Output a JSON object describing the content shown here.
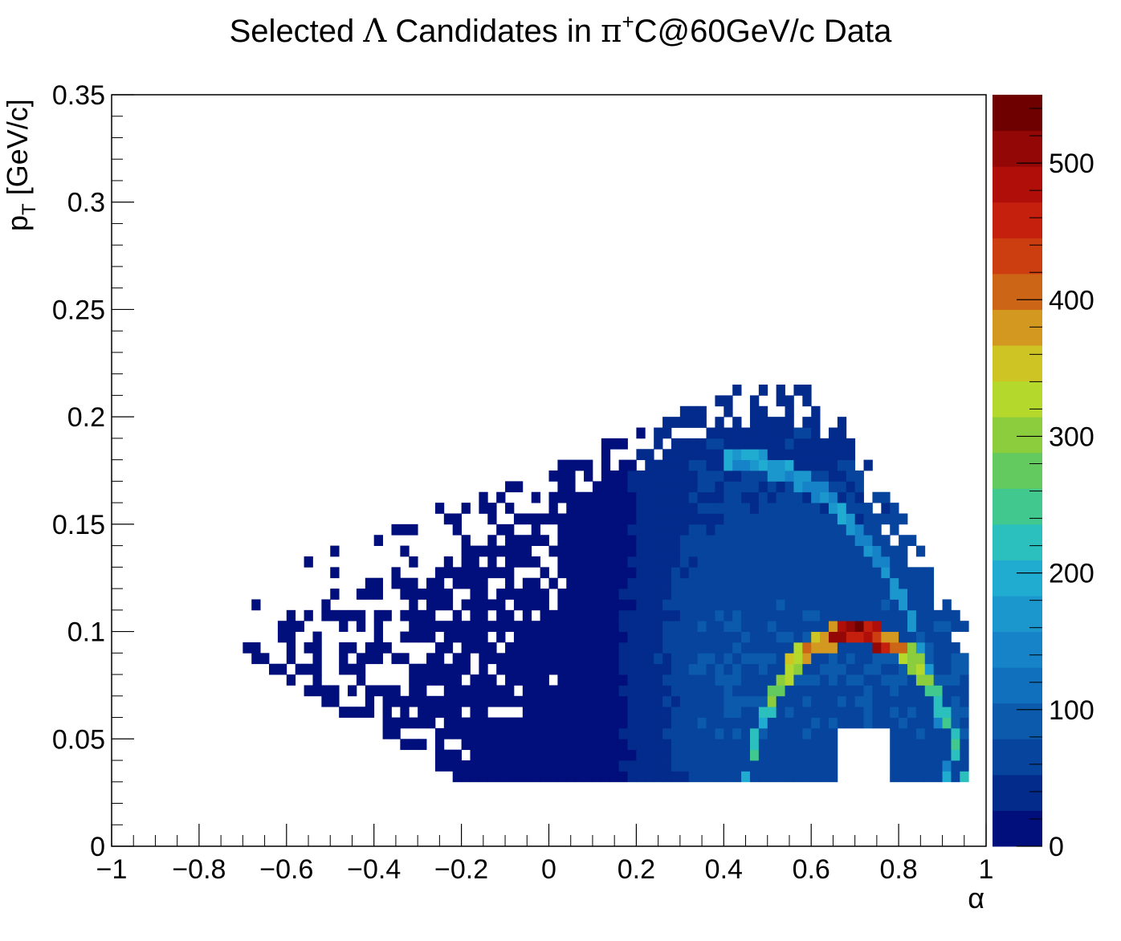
{
  "chart_data": {
    "type": "heatmap",
    "title_parts": {
      "before": "Selected ",
      "lambda": "Λ",
      "middle": " Candidates in ",
      "pi": "π",
      "sup": "+",
      "after": "C@60GeV/c Data"
    },
    "xlabel": "α",
    "ylabel_main": "p",
    "ylabel_sub": "T",
    "ylabel_unit": " [GeV/c]",
    "xlim": [
      -1,
      1
    ],
    "ylim": [
      0,
      0.35
    ],
    "x_ticks": [
      "−1",
      "−0.8",
      "−0.6",
      "−0.4",
      "−0.2",
      "0",
      "0.2",
      "0.4",
      "0.6",
      "0.8",
      "1"
    ],
    "x_tick_values": [
      -1,
      -0.8,
      -0.6,
      -0.4,
      -0.2,
      0,
      0.2,
      0.4,
      0.6,
      0.8,
      1
    ],
    "y_ticks": [
      "0",
      "0.05",
      "0.1",
      "0.15",
      "0.2",
      "0.25",
      "0.3",
      "0.35"
    ],
    "y_tick_values": [
      0,
      0.05,
      0.1,
      0.15,
      0.2,
      0.25,
      0.3,
      0.35
    ],
    "z_range": [
      0,
      550
    ],
    "z_ticks": [
      "0",
      "100",
      "200",
      "300",
      "400",
      "500"
    ],
    "z_tick_values": [
      0,
      100,
      200,
      300,
      400,
      500
    ],
    "bins": {
      "x_bins": 100,
      "y_bins": 70,
      "x_range": [
        -1,
        1
      ],
      "y_range": [
        0,
        0.35
      ]
    },
    "palette": [
      "#000f7b",
      "#032b8c",
      "#06449d",
      "#0b5aac",
      "#1070bd",
      "#1683c8",
      "#1c97ce",
      "#20acd0",
      "#2bbfbd",
      "#40c88f",
      "#62ca5e",
      "#8ccd3e",
      "#b4d82b",
      "#cec524",
      "#d29820",
      "#cc6515",
      "#cc3d0f",
      "#c51f0d",
      "#b00f09",
      "#930706",
      "#6e0000"
    ],
    "description_features": {
      "band_center_alpha": 0.7,
      "band_peak_pt": 0.1,
      "band_halfwidth_alpha": 0.26,
      "peak_count": 550
    }
  }
}
